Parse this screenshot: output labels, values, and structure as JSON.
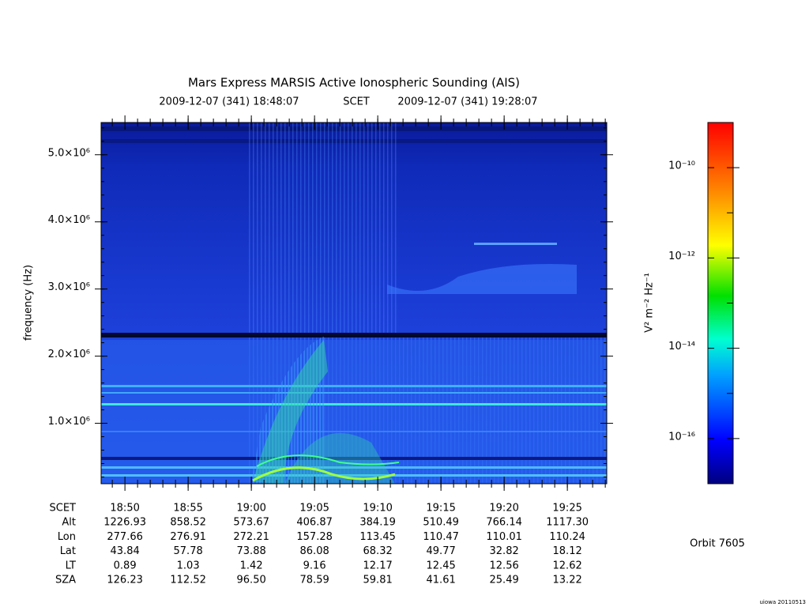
{
  "chart_data": {
    "type": "spectrogram",
    "title": "Mars Express MARSIS Active Ionospheric Sounding (AIS)",
    "time_range": {
      "start": "2009-12-07 (341) 18:48:07",
      "label": "SCET",
      "end": "2009-12-07 (341) 19:28:07"
    },
    "ylabel": "frequency (Hz)",
    "ylim": [
      100000,
      5480000
    ],
    "yticks": [
      {
        "value": 1000000,
        "label": "1.0×10⁶"
      },
      {
        "value": 2000000,
        "label": "2.0×10⁶"
      },
      {
        "value": 3000000,
        "label": "3.0×10⁶"
      },
      {
        "value": 4000000,
        "label": "4.0×10⁶"
      },
      {
        "value": 5000000,
        "label": "5.0×10⁶"
      }
    ],
    "xlim": [
      "18:48:07",
      "19:28:07"
    ],
    "xtick_row_label": "SCET",
    "xticks": [
      "18:50",
      "18:55",
      "19:00",
      "19:05",
      "19:10",
      "19:15",
      "19:20",
      "19:25"
    ],
    "ephemeris": [
      {
        "label": "Alt",
        "values": [
          "1226.93",
          "858.52",
          "573.67",
          "406.87",
          "384.19",
          "510.49",
          "766.14",
          "1117.30"
        ]
      },
      {
        "label": "Lon",
        "values": [
          "277.66",
          "276.91",
          "272.21",
          "157.28",
          "113.45",
          "110.47",
          "110.01",
          "110.24"
        ]
      },
      {
        "label": "Lat",
        "values": [
          "43.84",
          "57.78",
          "73.88",
          "86.08",
          "68.32",
          "49.77",
          "32.82",
          "18.12"
        ]
      },
      {
        "label": "LT",
        "values": [
          "0.89",
          "1.03",
          "1.42",
          "9.16",
          "12.17",
          "12.45",
          "12.56",
          "12.62"
        ]
      },
      {
        "label": "SZA",
        "values": [
          "126.23",
          "112.52",
          "96.50",
          "78.59",
          "59.81",
          "41.61",
          "25.49",
          "13.22"
        ]
      }
    ],
    "colorbar": {
      "label": "V² m⁻² Hz⁻¹",
      "log": true,
      "zlim": [
        1e-17,
        1e-09
      ],
      "ticks": [
        {
          "value": 1e-16,
          "label": "10⁻¹⁶"
        },
        {
          "value": 1e-14,
          "label": "10⁻¹⁴"
        },
        {
          "value": 1e-12,
          "label": "10⁻¹²"
        },
        {
          "value": 1e-10,
          "label": "10⁻¹⁰"
        }
      ]
    },
    "orbit": "Orbit 7605",
    "credit": "uiowa 20110513"
  }
}
